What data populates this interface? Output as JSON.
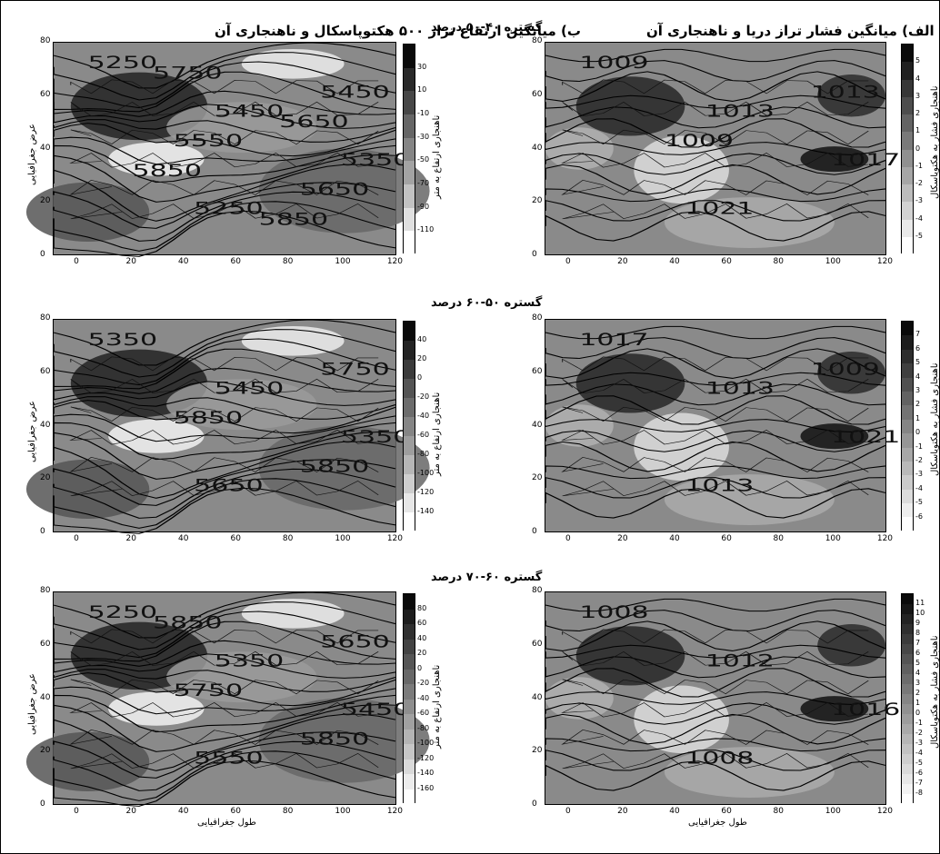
{
  "titles": {
    "left": "ب) میانگین ارتفاع تراز ۵۰۰ هکتوپاسکال و ناهنجاری آن",
    "right": "الف) میانگین فشار تراز دریا و ناهنجاری آن",
    "row1": "گستره ۴۰-۵۰ درصد",
    "row2": "گستره ۵۰-۶۰ درصد",
    "row3": "گستره ۶۰-۷۰ درصد"
  },
  "axes": {
    "ylabel": "عرض جغرافیایی",
    "xlabel": "طول جغرافیایی",
    "xticks": [
      "0",
      "20",
      "40",
      "60",
      "80",
      "100",
      "120"
    ],
    "yticks": [
      "0",
      "20",
      "40",
      "60",
      "80"
    ]
  },
  "colorbar_labels": {
    "left": "ناهنجاری ارتفاع به متر",
    "right": "ناهنجاری فشار به هکتوپاسکال"
  },
  "colorbars": {
    "r1_left": [
      "30",
      "10",
      "-10",
      "-30",
      "-50",
      "-70",
      "-90",
      "-110"
    ],
    "r1_right": [
      "5",
      "4",
      "3",
      "2",
      "1",
      "0",
      "-1",
      "-2",
      "-3",
      "-4",
      "-5"
    ],
    "r2_left": [
      "40",
      "20",
      "0",
      "-20",
      "-40",
      "-60",
      "-80",
      "-100",
      "-120",
      "-140"
    ],
    "r2_right": [
      "7",
      "6",
      "5",
      "4",
      "3",
      "2",
      "1",
      "0",
      "-1",
      "-2",
      "-3",
      "-4",
      "-5",
      "-6"
    ],
    "r3_left": [
      "80",
      "60",
      "40",
      "20",
      "0",
      "-20",
      "-40",
      "-60",
      "-80",
      "-100",
      "-120",
      "-140",
      "-160"
    ],
    "r3_right": [
      "11",
      "10",
      "9",
      "8",
      "7",
      "6",
      "5",
      "4",
      "3",
      "2",
      "1",
      "0",
      "-1",
      "-2",
      "-3",
      "-4",
      "-5",
      "-6",
      "-7",
      "-8"
    ]
  },
  "contour_labels": {
    "r1_left": [
      "5250",
      "5450",
      "5350",
      "5250",
      "5450",
      "5550",
      "5650",
      "5750",
      "5650",
      "5850",
      "5850"
    ],
    "r1_right": [
      "1009",
      "1013",
      "1017",
      "1021",
      "1013",
      "1009"
    ],
    "r2_left": [
      "5350",
      "5450",
      "5350",
      "5650",
      "5750",
      "5850",
      "5850"
    ],
    "r2_right": [
      "1017",
      "1013",
      "1021",
      "1013",
      "1009"
    ],
    "r3_left": [
      "5250",
      "5350",
      "5450",
      "5550",
      "5650",
      "5750",
      "5850",
      "5850"
    ],
    "r3_right": [
      "1008",
      "1012",
      "1016",
      "1008"
    ]
  }
}
